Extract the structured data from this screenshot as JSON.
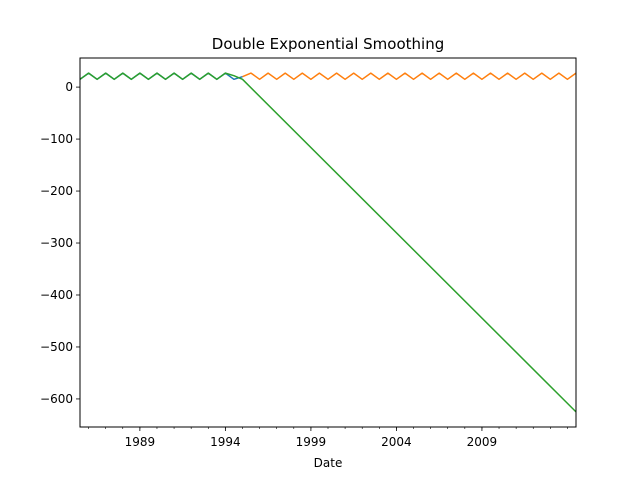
{
  "chart_data": {
    "type": "line",
    "title": "Double Exponential Smoothing",
    "xlabel": "Date",
    "ylabel": "",
    "grid": false,
    "xlim": [
      1985.5,
      2014.5
    ],
    "ylim": [
      -654,
      56
    ],
    "x_ticks": [
      {
        "value": 1989,
        "label": "1989"
      },
      {
        "value": 1994,
        "label": "1994"
      },
      {
        "value": 1999,
        "label": "1999"
      },
      {
        "value": 2004,
        "label": "2004"
      },
      {
        "value": 2009,
        "label": "2009"
      }
    ],
    "y_ticks": [
      {
        "value": 0,
        "label": "0"
      },
      {
        "value": -100,
        "label": "−100"
      },
      {
        "value": -200,
        "label": "−200"
      },
      {
        "value": -300,
        "label": "−300"
      },
      {
        "value": -400,
        "label": "−400"
      },
      {
        "value": -500,
        "label": "−500"
      },
      {
        "value": -600,
        "label": "−600"
      }
    ],
    "series": [
      {
        "color": "#1f77b4",
        "x": [
          1985.5,
          1986,
          1986.5,
          1987,
          1987.5,
          1988,
          1988.5,
          1989,
          1989.5,
          1990,
          1990.5,
          1991,
          1991.5,
          1992,
          1992.5,
          1993,
          1993.5,
          1994,
          1994.5,
          1995
        ],
        "values": [
          15,
          27,
          15,
          27,
          15,
          27,
          15,
          27,
          15,
          27,
          15,
          27,
          15,
          27,
          15,
          27,
          15,
          27,
          15,
          20
        ]
      },
      {
        "color": "#ff7f0e",
        "x": [
          1995,
          1995.5,
          1996,
          1996.5,
          1997,
          1997.5,
          1998,
          1998.5,
          1999,
          1999.5,
          2000,
          2000.5,
          2001,
          2001.5,
          2002,
          2002.5,
          2003,
          2003.5,
          2004,
          2004.5,
          2005,
          2005.5,
          2006,
          2006.5,
          2007,
          2007.5,
          2008,
          2008.5,
          2009,
          2009.5,
          2010,
          2010.5,
          2011,
          2011.5,
          2012,
          2012.5,
          2013,
          2013.5,
          2014,
          2014.5
        ],
        "values": [
          20,
          27,
          15,
          27,
          15,
          27,
          15,
          27,
          15,
          27,
          15,
          27,
          15,
          27,
          15,
          27,
          15,
          27,
          15,
          27,
          15,
          27,
          15,
          27,
          15,
          27,
          15,
          27,
          15,
          27,
          15,
          27,
          15,
          27,
          15,
          27,
          15,
          27,
          15,
          27
        ]
      },
      {
        "color": "#2ca02c",
        "x": [
          1985.5,
          1986,
          1986.5,
          1987,
          1987.5,
          1988,
          1988.5,
          1989,
          1989.5,
          1990,
          1990.5,
          1991,
          1991.5,
          1992,
          1992.5,
          1993,
          1993.5,
          1994,
          1994.5,
          1995,
          2014.5
        ],
        "values": [
          15,
          27,
          15,
          27,
          15,
          27,
          15,
          27,
          15,
          27,
          15,
          27,
          15,
          27,
          15,
          27,
          15,
          27,
          22,
          15,
          -625
        ]
      }
    ]
  }
}
